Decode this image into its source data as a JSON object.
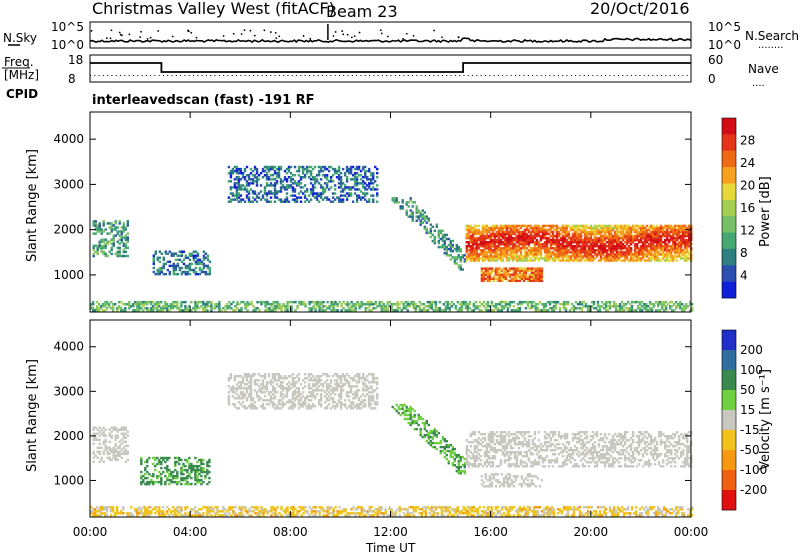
{
  "header": {
    "title": "Christmas Valley West (fitACF)",
    "beam": "Beam 23",
    "date": "20/Oct/2016"
  },
  "panels": {
    "nsky": {
      "label": "N.Sky",
      "left_ticks": [
        "10^5",
        "10^0"
      ],
      "right_ticks": [
        "10^5",
        "10^0"
      ],
      "right_label": "N.Search",
      "right_dots": "........"
    },
    "freq": {
      "label_lines": [
        "Freq.",
        "[MHz]"
      ],
      "left_ticks": [
        "18",
        "8"
      ],
      "right_ticks": [
        "60",
        "0"
      ],
      "right_label": "Nave",
      "right_dots": "....",
      "cpid_label": "CPID",
      "cpid_text": "interleavedscan (fast) -191 RF"
    }
  },
  "chart_data": [
    {
      "type": "heatmap",
      "name": "power",
      "ylabel": "Slant Range [km]",
      "yticks": [
        1000,
        2000,
        3000,
        4000
      ],
      "ylim": [
        180,
        4600
      ],
      "xlim": [
        0,
        24
      ],
      "colorbar": {
        "label": "Power [dB]",
        "ticks": [
          4,
          8,
          12,
          16,
          20,
          24,
          28
        ],
        "range": [
          0,
          32
        ],
        "colors": [
          "#1020d8",
          "#2a4fb0",
          "#2f7f80",
          "#45a872",
          "#77c06a",
          "#a6cf52",
          "#e8d83a",
          "#f5a01e",
          "#ef6a14",
          "#e4351a",
          "#d20e14"
        ]
      },
      "echo_regions": [
        {
          "t0": 0.1,
          "t1": 1.5,
          "r0": 1400,
          "r1": 2200,
          "power": 10
        },
        {
          "t0": 2.5,
          "t1": 4.8,
          "r0": 1000,
          "r1": 1500,
          "power": 7
        },
        {
          "t0": 5.5,
          "t1": 11.5,
          "r0": 2600,
          "r1": 3400,
          "power": 6
        },
        {
          "t0": 11.8,
          "t1": 15.0,
          "r0": 1100,
          "r1": 2700,
          "power": 9
        },
        {
          "t0": 15.0,
          "t1": 24.0,
          "r0": 1300,
          "r1": 2100,
          "power": 22
        },
        {
          "t0": 15.6,
          "t1": 18.0,
          "r0": 850,
          "r1": 1150,
          "power": 24
        },
        {
          "t0": 0.0,
          "t1": 24.0,
          "r0": 200,
          "r1": 420,
          "power": 12
        }
      ]
    },
    {
      "type": "heatmap",
      "name": "velocity",
      "ylabel": "Slant Range [km]",
      "yticks": [
        1000,
        2000,
        3000,
        4000
      ],
      "ylim": [
        180,
        4600
      ],
      "xlim": [
        0,
        24
      ],
      "xticks": [
        "00:00",
        "04:00",
        "08:00",
        "12:00",
        "16:00",
        "20:00",
        "00:00"
      ],
      "xlabel": "Time UT",
      "colorbar": {
        "label": "Velocity [m s⁻¹]",
        "ticks": [
          "200",
          "100",
          "50",
          "15",
          "-15",
          "-50",
          "-100",
          "-200"
        ],
        "colors": [
          "#1f2fc8",
          "#2e6ea0",
          "#3a8a4f",
          "#6fd040",
          "#c8c8c0",
          "#f0c21a",
          "#f59a10",
          "#ef6010",
          "#e01010"
        ]
      },
      "echo_regions": [
        {
          "t0": 0.1,
          "t1": 1.5,
          "r0": 1400,
          "r1": 2200,
          "velocity": 0
        },
        {
          "t0": 2.0,
          "t1": 4.8,
          "r0": 900,
          "r1": 1500,
          "velocity": 40
        },
        {
          "t0": 5.5,
          "t1": 11.5,
          "r0": 2600,
          "r1": 3400,
          "velocity": 0
        },
        {
          "t0": 11.8,
          "t1": 15.0,
          "r0": 1100,
          "r1": 2700,
          "velocity": 30
        },
        {
          "t0": 15.0,
          "t1": 24.0,
          "r0": 1300,
          "r1": 2100,
          "velocity": 0
        },
        {
          "t0": 15.6,
          "t1": 18.0,
          "r0": 850,
          "r1": 1150,
          "velocity": 0
        },
        {
          "t0": 0.0,
          "t1": 24.0,
          "r0": 200,
          "r1": 420,
          "velocity": -20
        }
      ]
    }
  ],
  "colors": {
    "axis": "#000000",
    "background": "#ffffff",
    "ground_scatter": "#c8c8c0"
  }
}
